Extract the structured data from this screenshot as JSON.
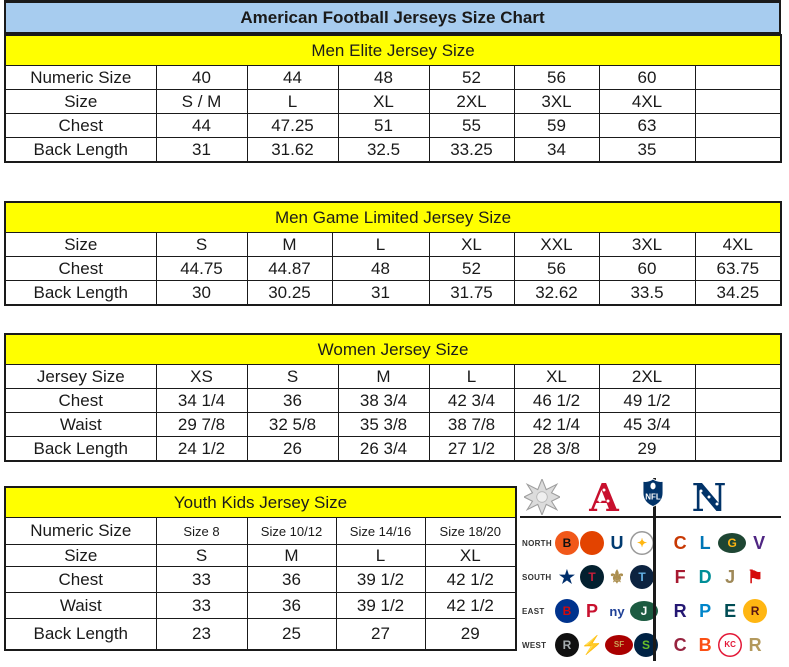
{
  "title": "American Football Jerseys Size Chart",
  "palette": {
    "title_bar_bg": "#a7ccef",
    "section_header_bg": "#ffff00",
    "border_line": "#1a1a1a",
    "afc_red": "#c8102e",
    "nfc_blue": "#013369"
  },
  "tables": [
    {
      "id": "men-elite",
      "header": "Men Elite Jersey Size",
      "rows": [
        {
          "label": "Numeric Size",
          "values": [
            "40",
            "44",
            "48",
            "52",
            "56",
            "60"
          ]
        },
        {
          "label": "Size",
          "values": [
            "S / M",
            "L",
            "XL",
            "2XL",
            "3XL",
            "4XL"
          ]
        },
        {
          "label": "Chest",
          "values": [
            "44",
            "47.25",
            "51",
            "55",
            "59",
            "63"
          ]
        },
        {
          "label": "Back Length",
          "values": [
            "31",
            "31.62",
            "32.5",
            "33.25",
            "34",
            "35"
          ]
        }
      ]
    },
    {
      "id": "men-game-limited",
      "header": "Men Game Limited Jersey Size",
      "rows": [
        {
          "label": "Size",
          "values": [
            "S",
            "M",
            "L",
            "XL",
            "XXL",
            "3XL",
            "4XL"
          ]
        },
        {
          "label": "Chest",
          "values": [
            "44.75",
            "44.87",
            "48",
            "52",
            "56",
            "60",
            "63.75"
          ]
        },
        {
          "label": "Back Length",
          "values": [
            "30",
            "30.25",
            "31",
            "31.75",
            "32.62",
            "33.5",
            "34.25"
          ]
        }
      ]
    },
    {
      "id": "women",
      "header": "Women Jersey Size",
      "rows": [
        {
          "label": "Jersey Size",
          "values": [
            "XS",
            "S",
            "M",
            "L",
            "XL",
            "2XL"
          ]
        },
        {
          "label": "Chest",
          "values": [
            "34 1/4",
            "36",
            "38 3/4",
            "42 3/4",
            "46 1/2",
            "49 1/2"
          ]
        },
        {
          "label": "Waist",
          "values": [
            "29 7/8",
            "32 5/8",
            "35 3/8",
            "38 7/8",
            "42 1/4",
            "45 3/4"
          ]
        },
        {
          "label": "Back Length",
          "values": [
            "24 1/2",
            "26",
            "26 3/4",
            "27 1/2",
            "28 3/8",
            "29"
          ]
        }
      ]
    },
    {
      "id": "youth-kids",
      "header": "Youth Kids Jersey Size",
      "rows": [
        {
          "label": "Numeric Size",
          "values": [
            "Size 8",
            "Size 10/12",
            "Size 14/16",
            "Size 18/20"
          ]
        },
        {
          "label": "Size",
          "values": [
            "S",
            "M",
            "L",
            "XL"
          ]
        },
        {
          "label": "Chest",
          "values": [
            "33",
            "36",
            "39 1/2",
            "42 1/2"
          ]
        },
        {
          "label": "Waist",
          "values": [
            "33",
            "36",
            "39 1/2",
            "42 1/2"
          ]
        },
        {
          "label": "Back Length",
          "values": [
            "23",
            "25",
            "27",
            "29"
          ]
        }
      ]
    }
  ],
  "nfl_panel": {
    "afc_letter": "A",
    "nfc_letter": "N",
    "shield_label": "NFL",
    "divisions": [
      {
        "label": "NORTH",
        "afc": [
          {
            "team": "cincinnati-bengals",
            "glyph": "B",
            "bg": "#f1581a",
            "fg": "#101010"
          },
          {
            "team": "cleveland-browns",
            "glyph": "",
            "bg": "#e34300",
            "fg": "#ffffff"
          },
          {
            "team": "indianapolis-colts",
            "glyph": "U",
            "fg": "#003a70"
          },
          {
            "team": "pittsburgh-steelers",
            "glyph": "✦",
            "bg": "#ffffff",
            "fg": "#ffb612",
            "border": "#9a9a9a"
          }
        ],
        "nfc": [
          {
            "team": "chicago-bears",
            "glyph": "C",
            "fg": "#c83803"
          },
          {
            "team": "detroit-lions",
            "glyph": "L",
            "fg": "#0076b6"
          },
          {
            "team": "green-bay-packers",
            "glyph": "G",
            "bg": "#1e4633",
            "fg": "#ffb612",
            "shape": "oval"
          },
          {
            "team": "minnesota-vikings",
            "glyph": "V",
            "fg": "#4f2683"
          }
        ]
      },
      {
        "label": "SOUTH",
        "afc": [
          {
            "team": "dallas-cowboys",
            "glyph": "★",
            "fg": "#002f6c"
          },
          {
            "team": "houston-texans",
            "glyph": "T",
            "bg": "#03202f",
            "fg": "#c41e3a"
          },
          {
            "team": "new-orleans-saints",
            "glyph": "⚜",
            "fg": "#ab8e4e"
          },
          {
            "team": "tennessee-titans",
            "glyph": "T",
            "bg": "#0c2340",
            "fg": "#63b1e5"
          }
        ],
        "nfc": [
          {
            "team": "atlanta-falcons",
            "glyph": "F",
            "fg": "#a71930"
          },
          {
            "team": "miami-dolphins",
            "glyph": "D",
            "fg": "#008e97"
          },
          {
            "team": "jacksonville-jaguars",
            "glyph": "J",
            "fg": "#9f8958"
          },
          {
            "team": "tampa-bay-buccaneers",
            "glyph": "⚑",
            "fg": "#d50a0a"
          }
        ]
      },
      {
        "label": "EAST",
        "afc": [
          {
            "team": "buffalo-bills",
            "glyph": "B",
            "bg": "#00338d",
            "fg": "#d50a0a"
          },
          {
            "team": "new-england-patriots",
            "glyph": "P",
            "fg": "#c8102e"
          },
          {
            "team": "new-york-giants",
            "glyph": "ny",
            "fg": "#1f4096"
          },
          {
            "team": "new-york-jets",
            "glyph": "J",
            "bg": "#1c5b41",
            "fg": "#ffffff",
            "shape": "oval"
          }
        ],
        "nfc": [
          {
            "team": "baltimore-ravens",
            "glyph": "R",
            "fg": "#241773"
          },
          {
            "team": "carolina-panthers",
            "glyph": "P",
            "fg": "#0085ca"
          },
          {
            "team": "philadelphia-eagles",
            "glyph": "E",
            "fg": "#004c54"
          },
          {
            "team": "washington-redskins",
            "glyph": "R",
            "bg": "#ffb612",
            "fg": "#5a1414"
          }
        ]
      },
      {
        "label": "WEST",
        "afc": [
          {
            "team": "oakland-raiders",
            "glyph": "R",
            "bg": "#101010",
            "fg": "#a5acaf"
          },
          {
            "team": "san-diego-chargers",
            "glyph": "⚡",
            "fg": "#ffc20e"
          },
          {
            "team": "san-francisco-49ers",
            "glyph": "SF",
            "bg": "#aa0000",
            "fg": "#c9a557",
            "shape": "oval"
          },
          {
            "team": "seattle-seahawks",
            "glyph": "S",
            "bg": "#002244",
            "fg": "#69be28"
          }
        ],
        "nfc": [
          {
            "team": "arizona-cardinals",
            "glyph": "C",
            "fg": "#97233f"
          },
          {
            "team": "denver-broncos",
            "glyph": "B",
            "fg": "#fb4f14"
          },
          {
            "team": "kansas-city-chiefs",
            "glyph": "KC",
            "bg": "#ffffff",
            "fg": "#e31837",
            "border": "#e31837"
          },
          {
            "team": "st-louis-rams",
            "glyph": "R",
            "fg": "#b3995d"
          }
        ]
      }
    ]
  }
}
